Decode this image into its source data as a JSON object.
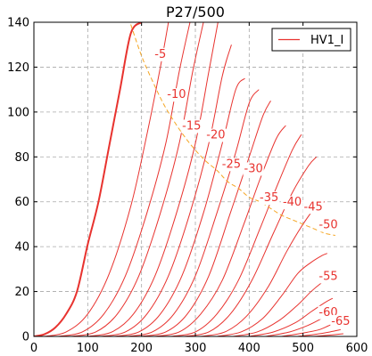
{
  "chart_data": {
    "type": "line",
    "title": "P27/500",
    "xlabel": "",
    "ylabel": "",
    "xlim": [
      0,
      600
    ],
    "ylim": [
      0,
      140
    ],
    "xticks": [
      0,
      100,
      200,
      300,
      400,
      500,
      600
    ],
    "yticks": [
      0,
      20,
      40,
      60,
      80,
      100,
      120,
      140
    ],
    "grid": true,
    "legend_position": "top-right",
    "legend": [
      {
        "label": "HV1_I",
        "color": "#e8332f"
      }
    ],
    "curve_color": "#e8332f",
    "dissipation_color": "#f5a623",
    "curves": [
      {
        "grid_v": 0,
        "label": "",
        "x": [
          0,
          20,
          40,
          60,
          80,
          100,
          120,
          140,
          160,
          180,
          200
        ],
        "y": [
          0,
          1,
          4,
          10,
          20,
          41,
          60,
          85,
          110,
          135,
          140
        ]
      },
      {
        "grid_v": -5,
        "label": "-5",
        "x": [
          20,
          60,
          100,
          140,
          180,
          210,
          235,
          250
        ],
        "y": [
          0,
          2,
          10,
          28,
          58,
          90,
          120,
          140
        ]
      },
      {
        "grid_v": -7.5,
        "label": "",
        "x": [
          45,
          90,
          130,
          170,
          210,
          245,
          270,
          290
        ],
        "y": [
          0,
          2,
          10,
          27,
          55,
          86,
          118,
          140
        ]
      },
      {
        "grid_v": -10,
        "label": "-10",
        "x": [
          70,
          115,
          155,
          195,
          235,
          270,
          295,
          315
        ],
        "y": [
          0,
          2,
          10,
          27,
          55,
          86,
          118,
          140
        ]
      },
      {
        "grid_v": -12.5,
        "label": "",
        "x": [
          100,
          145,
          185,
          225,
          265,
          300,
          325,
          342
        ],
        "y": [
          0,
          2,
          10,
          27,
          55,
          86,
          118,
          140
        ]
      },
      {
        "grid_v": -15,
        "label": "-15",
        "x": [
          125,
          170,
          210,
          250,
          290,
          325,
          350,
          367
        ],
        "y": [
          0,
          2,
          10,
          27,
          55,
          86,
          116,
          130
        ]
      },
      {
        "grid_v": -20,
        "label": "-20",
        "x": [
          150,
          195,
          235,
          275,
          315,
          350,
          375,
          392
        ],
        "y": [
          0,
          2,
          10,
          27,
          55,
          86,
          110,
          115
        ]
      },
      {
        "grid_v": -25,
        "label": "-25",
        "x": [
          175,
          220,
          260,
          300,
          340,
          375,
          400,
          418
        ],
        "y": [
          0,
          2,
          10,
          27,
          55,
          82,
          104,
          110
        ]
      },
      {
        "grid_v": -30,
        "label": "-30",
        "x": [
          200,
          245,
          285,
          325,
          365,
          400,
          425,
          440
        ],
        "y": [
          0,
          2,
          10,
          27,
          55,
          80,
          98,
          105
        ]
      },
      {
        "grid_v": -35,
        "label": "-35",
        "x": [
          225,
          270,
          310,
          350,
          390,
          420,
          450,
          468
        ],
        "y": [
          0,
          2,
          10,
          25,
          50,
          70,
          88,
          94
        ]
      },
      {
        "grid_v": -40,
        "label": "-40",
        "x": [
          255,
          300,
          340,
          380,
          420,
          450,
          480,
          497
        ],
        "y": [
          0,
          2,
          10,
          25,
          48,
          66,
          83,
          90
        ]
      },
      {
        "grid_v": -45,
        "label": "-45",
        "x": [
          280,
          325,
          365,
          405,
          445,
          480,
          510,
          525
        ],
        "y": [
          0,
          2,
          10,
          25,
          46,
          64,
          76,
          80
        ]
      },
      {
        "grid_v": -50,
        "label": "-50",
        "x": [
          310,
          355,
          395,
          435,
          470,
          500,
          525,
          540
        ],
        "y": [
          0,
          2,
          9,
          22,
          38,
          50,
          58,
          60
        ]
      },
      {
        "grid_v": -55,
        "label": "-55",
        "x": [
          340,
          385,
          425,
          460,
          490,
          515,
          535,
          545
        ],
        "y": [
          0,
          2,
          8,
          18,
          28,
          33,
          36,
          37
        ]
      },
      {
        "grid_v": -57.5,
        "label": "",
        "x": [
          370,
          415,
          455,
          490,
          515,
          535,
          548
        ],
        "y": [
          0,
          2,
          7,
          14,
          20,
          24,
          26
        ]
      },
      {
        "grid_v": -60,
        "label": "-60",
        "x": [
          400,
          445,
          485,
          515,
          540,
          555
        ],
        "y": [
          0,
          2,
          6,
          11,
          15,
          17
        ]
      },
      {
        "grid_v": -62.5,
        "label": "",
        "x": [
          430,
          475,
          510,
          535,
          552,
          560
        ],
        "y": [
          0,
          2,
          5,
          8,
          10,
          11
        ]
      },
      {
        "grid_v": -65,
        "label": "-65",
        "x": [
          460,
          500,
          530,
          550,
          565
        ],
        "y": [
          0,
          1.5,
          3,
          5,
          6
        ]
      },
      {
        "grid_v": -67.5,
        "label": "",
        "x": [
          490,
          525,
          550,
          570
        ],
        "y": [
          0,
          1,
          2,
          3
        ]
      },
      {
        "grid_v": -70,
        "label": "",
        "x": [
          520,
          550,
          575
        ],
        "y": [
          0,
          0.6,
          1.2
        ]
      }
    ],
    "curve_labels": [
      {
        "label": "-5",
        "x": 235,
        "y": 126
      },
      {
        "label": "-10",
        "x": 265,
        "y": 108
      },
      {
        "label": "-15",
        "x": 293,
        "y": 94
      },
      {
        "label": "-20",
        "x": 338,
        "y": 90
      },
      {
        "label": "-25",
        "x": 367,
        "y": 77
      },
      {
        "label": "-30",
        "x": 408,
        "y": 75
      },
      {
        "label": "-35",
        "x": 437,
        "y": 62
      },
      {
        "label": "-40",
        "x": 480,
        "y": 60
      },
      {
        "label": "-45",
        "x": 519,
        "y": 58
      },
      {
        "label": "-50",
        "x": 547,
        "y": 50
      },
      {
        "label": "-55",
        "x": 547,
        "y": 27
      },
      {
        "label": "-60",
        "x": 547,
        "y": 11
      },
      {
        "label": "-65",
        "x": 570,
        "y": 7
      }
    ],
    "dissipation_curve": {
      "x": [
        180,
        200,
        220,
        240,
        260,
        280,
        300,
        320,
        340,
        360,
        380,
        400,
        420,
        440,
        460,
        480,
        500,
        520,
        540,
        560
      ],
      "y": [
        139,
        125,
        114,
        104,
        96,
        89,
        83,
        78,
        74,
        69,
        66,
        62,
        60,
        57,
        54,
        52,
        50,
        48,
        46,
        45
      ]
    }
  }
}
